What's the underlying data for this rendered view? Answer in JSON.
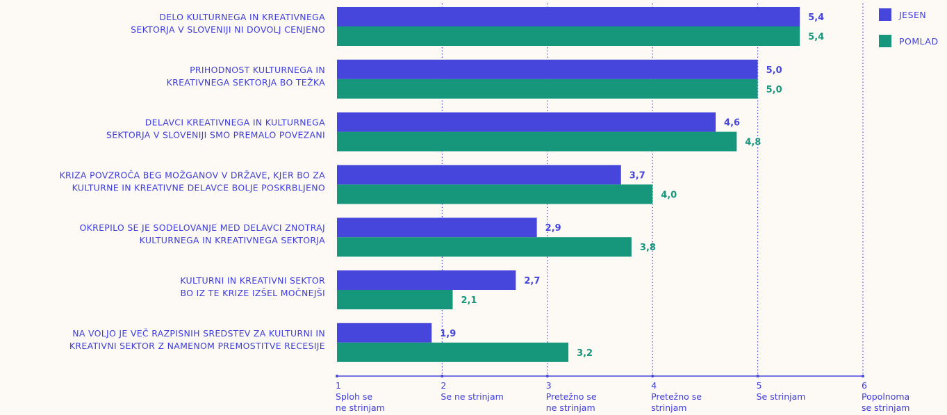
{
  "colors": {
    "jesen": "#4646dd",
    "pomlad": "#16977c",
    "text": "#3d3ddb",
    "grid": "#4646dd",
    "background": "#fdf9f4"
  },
  "chart_data": {
    "type": "bar",
    "orientation": "horizontal",
    "categories": [
      [
        "DELO KULTURNEGA IN KREATIVNEGA",
        "SEKTORJA V SLOVENIJI NI DOVOLJ CENJENO"
      ],
      [
        "PRIHODNOST KULTURNEGA IN",
        "KREATIVNEGA SEKTORJA BO TEŽKA"
      ],
      [
        "DELAVCI KREATIVNEGA IN KULTURNEGA",
        "SEKTORJA V SLOVENIJI SMO PREMALO POVEZANI"
      ],
      [
        "KRIZA POVZROČA BEG MOŽGANOV V DRŽAVE, KJER BO ZA",
        "KULTURNE IN KREATIVNE DELAVCE BOLJE POSKRBLJENO"
      ],
      [
        "OKREPILO SE JE SODELOVANJE MED DELAVCI ZNOTRAJ",
        "KULTURNEGA IN KREATIVNEGA SEKTORJA"
      ],
      [
        "KULTURNI IN KREATIVNI SEKTOR",
        "BO IZ TE KRIZE IZŠEL MOČNEJŠI"
      ],
      [
        "NA VOLJO JE VEČ RAZPISNIH SREDSTEV ZA KULTURNI IN",
        "KREATIVNI SEKTOR Z NAMENOM PREMOSTITVE RECESIJE"
      ]
    ],
    "series": [
      {
        "name": "JESEN",
        "values": [
          5.4,
          5.0,
          4.6,
          3.7,
          2.9,
          2.7,
          1.9
        ],
        "labels": [
          "5,4",
          "5,0",
          "4,6",
          "3,7",
          "2,9",
          "2,7",
          "1,9"
        ]
      },
      {
        "name": "POMLAD",
        "values": [
          5.4,
          5.0,
          4.8,
          4.0,
          3.8,
          2.1,
          3.2
        ],
        "labels": [
          "5,4",
          "5,0",
          "4,8",
          "4,0",
          "3,8",
          "2,1",
          "3,2"
        ]
      }
    ],
    "xlim": [
      1,
      6
    ],
    "x_ticks": [
      {
        "value": 1,
        "number": "1",
        "label": [
          "Sploh se",
          "ne strinjam"
        ]
      },
      {
        "value": 2,
        "number": "2",
        "label": [
          "Se ne strinjam"
        ]
      },
      {
        "value": 3,
        "number": "3",
        "label": [
          "Pretežno se",
          "ne strinjam"
        ]
      },
      {
        "value": 4,
        "number": "4",
        "label": [
          "Pretežno se",
          "strinjam"
        ]
      },
      {
        "value": 5,
        "number": "5",
        "label": [
          "Se strinjam"
        ]
      },
      {
        "value": 6,
        "number": "6",
        "label": [
          "Popolnoma",
          "se strinjam"
        ]
      }
    ],
    "grid": "vertical dotted",
    "legend_position": "top-right"
  }
}
